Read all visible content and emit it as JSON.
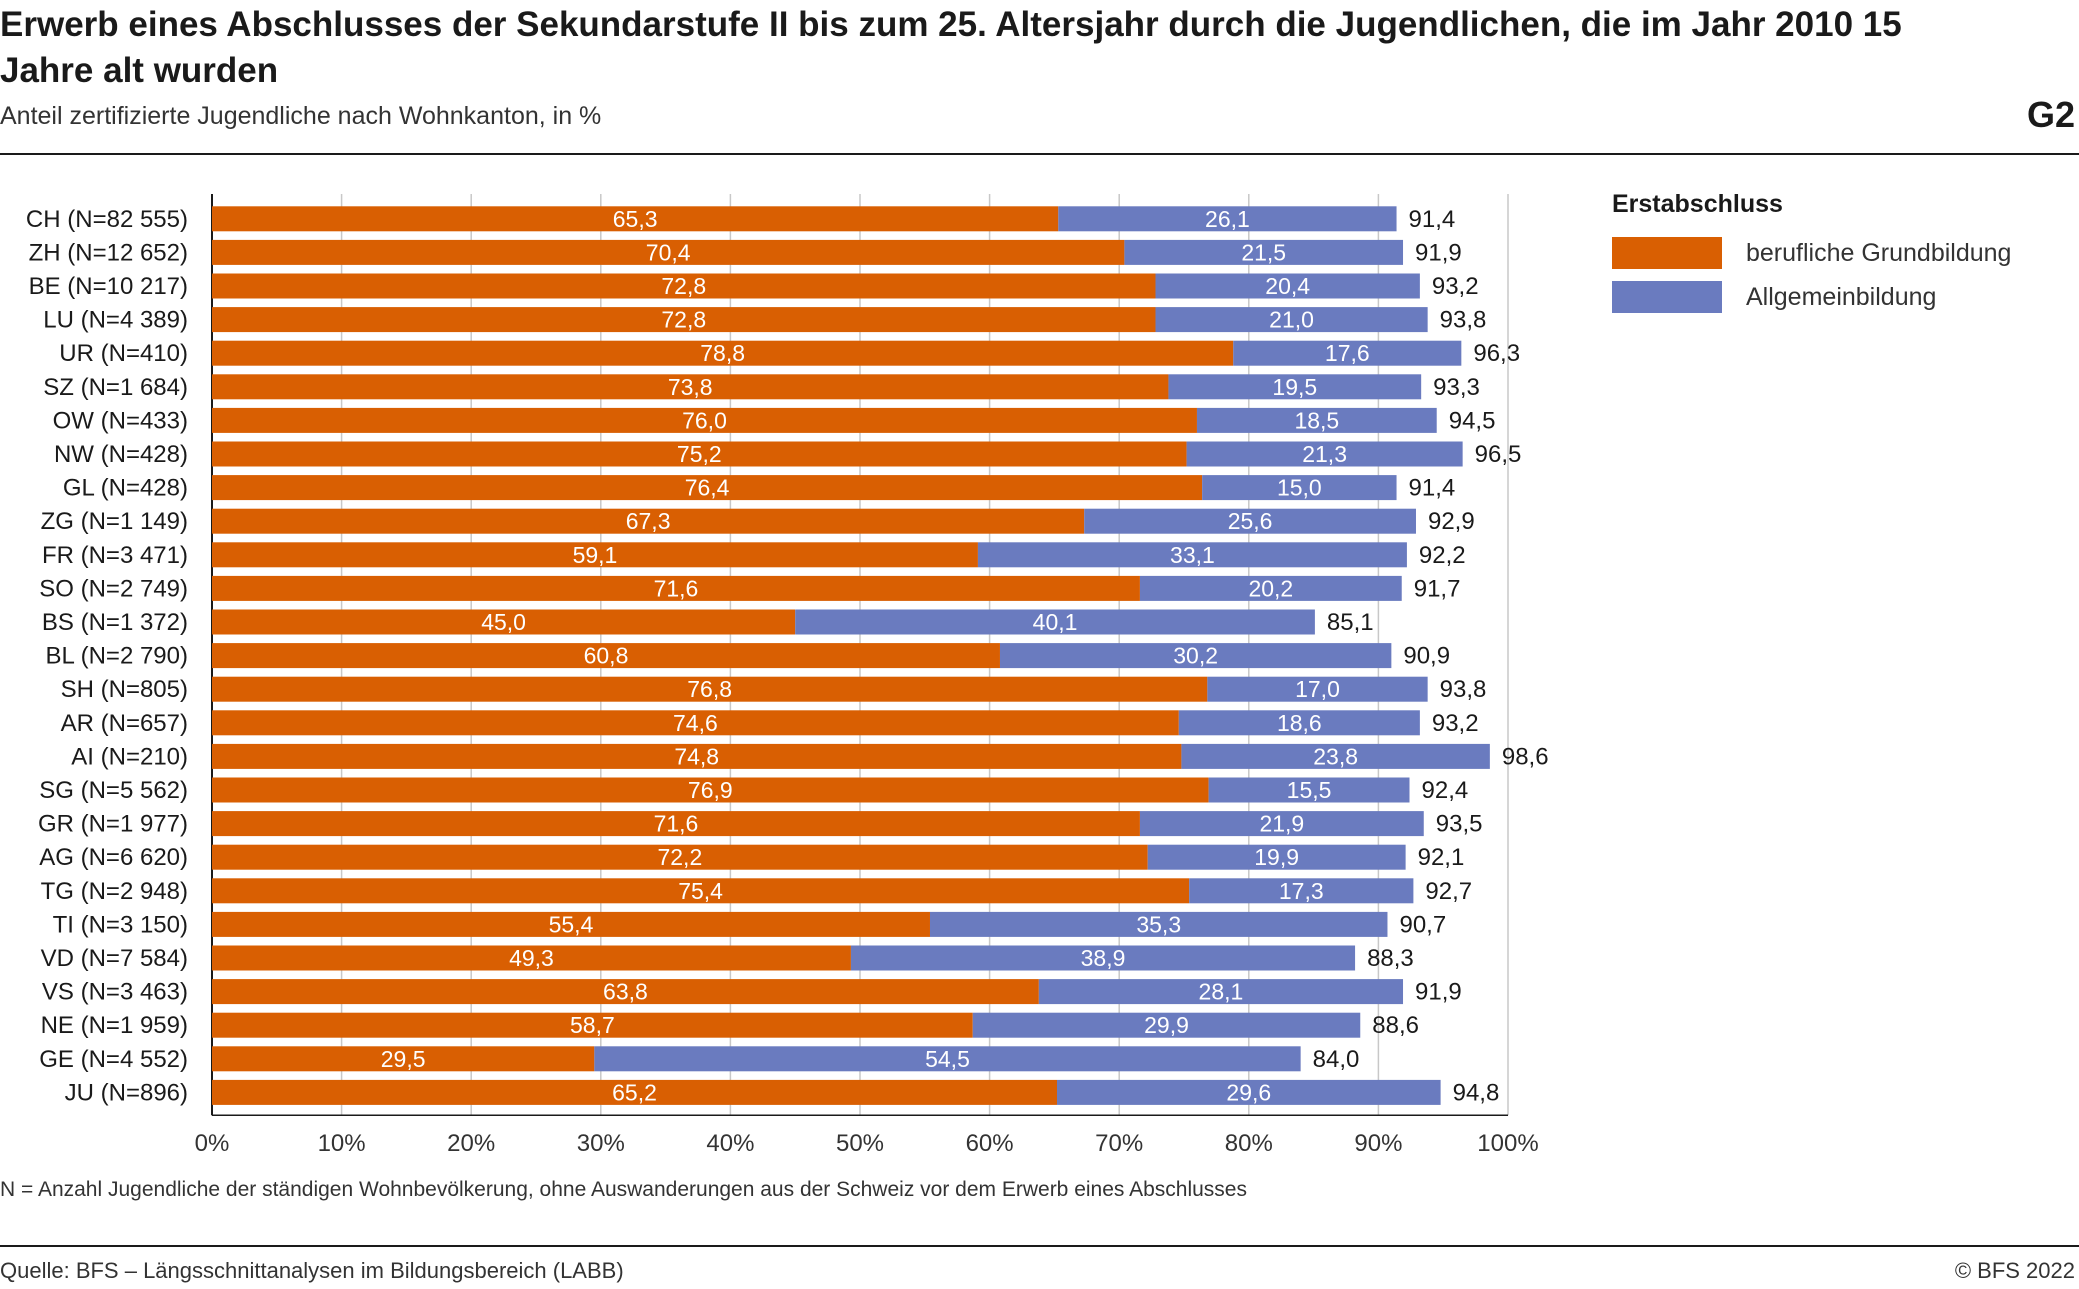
{
  "header": {
    "title": "Erwerb eines Abschlusses der Sekundarstufe II bis zum 25. Altersjahr durch die Jugendlichen, die im Jahr 2010 15 Jahre alt wurden",
    "subtitle": "Anteil zertifizierte Jugendliche nach Wohnkanton, in %",
    "figure_number": "G2"
  },
  "footer": {
    "note": "N = Anzahl Jugendliche der ständigen Wohnbevölkerung, ohne Auswanderungen aus der Schweiz vor dem Erwerb eines Abschlusses",
    "source": "Quelle: BFS – Längsschnittanalysen im Bildungsbereich (LABB)",
    "copyright": "© BFS 2022"
  },
  "legend": {
    "title": "Erstabschluss",
    "items": [
      {
        "label": "berufliche Grundbildung",
        "color": "#d95f02"
      },
      {
        "label": "Allgemeinbildung",
        "color": "#6a7bbf"
      }
    ]
  },
  "chart_data": {
    "type": "bar",
    "orientation": "horizontal",
    "stacked": true,
    "categories": [
      "CH (N=82 555)",
      "ZH (N=12 652)",
      "BE (N=10 217)",
      "LU (N=4 389)",
      "UR (N=410)",
      "SZ (N=1 684)",
      "OW (N=433)",
      "NW (N=428)",
      "GL (N=428)",
      "ZG (N=1 149)",
      "FR (N=3 471)",
      "SO (N=2 749)",
      "BS (N=1 372)",
      "BL (N=2 790)",
      "SH (N=805)",
      "AR (N=657)",
      "AI (N=210)",
      "SG (N=5 562)",
      "GR (N=1 977)",
      "AG (N=6 620)",
      "TG (N=2 948)",
      "TI (N=3 150)",
      "VD (N=7 584)",
      "VS (N=3 463)",
      "NE (N=1 959)",
      "GE (N=4 552)",
      "JU (N=896)"
    ],
    "series": [
      {
        "name": "berufliche Grundbildung",
        "color": "#d95f02",
        "values": [
          65.3,
          70.4,
          72.8,
          72.8,
          78.8,
          73.8,
          76.0,
          75.2,
          76.4,
          67.3,
          59.1,
          71.6,
          45.0,
          60.8,
          76.8,
          74.6,
          74.8,
          76.9,
          71.6,
          72.2,
          75.4,
          55.4,
          49.3,
          63.8,
          58.7,
          29.5,
          65.2
        ]
      },
      {
        "name": "Allgemeinbildung",
        "color": "#6a7bbf",
        "values": [
          26.1,
          21.5,
          20.4,
          21.0,
          17.6,
          19.5,
          18.5,
          21.3,
          15.0,
          25.6,
          33.1,
          20.2,
          40.1,
          30.2,
          17.0,
          18.6,
          23.8,
          15.5,
          21.9,
          19.9,
          17.3,
          35.3,
          38.9,
          28.1,
          29.9,
          54.5,
          29.6
        ]
      }
    ],
    "totals": [
      91.4,
      91.9,
      93.2,
      93.8,
      96.3,
      93.3,
      94.5,
      96.5,
      91.4,
      92.9,
      92.2,
      91.7,
      85.1,
      90.9,
      93.8,
      93.2,
      98.6,
      92.4,
      93.5,
      92.1,
      92.7,
      90.7,
      88.3,
      91.9,
      88.6,
      84.0,
      94.8
    ],
    "xlim": [
      0,
      100
    ],
    "x_ticks": [
      "0%",
      "10%",
      "20%",
      "30%",
      "40%",
      "50%",
      "60%",
      "70%",
      "80%",
      "90%",
      "100%"
    ],
    "grid": true,
    "legend_position": "right"
  }
}
